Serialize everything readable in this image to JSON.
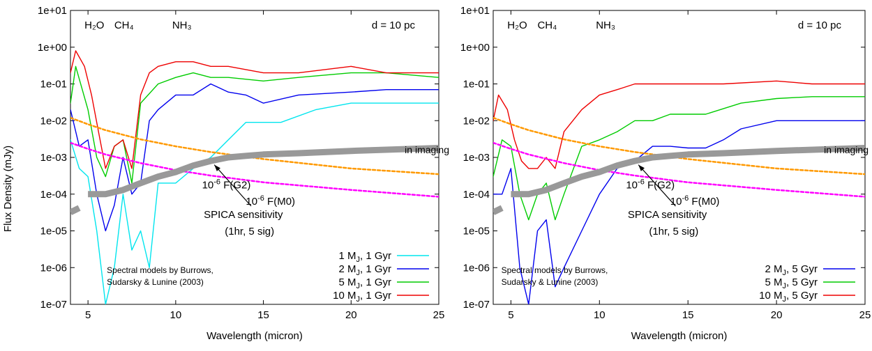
{
  "figure": {
    "ylabel": "Flux Density (mJy)"
  },
  "chart_data": [
    {
      "type": "line",
      "panel": "left",
      "title": "",
      "xlabel": "Wavelength (micron)",
      "ylabel": "Flux Density (mJy)",
      "x_scale": "linear",
      "y_scale": "log",
      "xlim": [
        4,
        25
      ],
      "ylim": [
        1e-07,
        10
      ],
      "grid": false,
      "legend_position": "bottom-right",
      "x_ticks": [
        5,
        10,
        15,
        20,
        25
      ],
      "y_ticks": [
        {
          "value": 10,
          "label": "1e+01"
        },
        {
          "value": 1,
          "label": "1e+00"
        },
        {
          "value": 0.1,
          "label": "1e-01"
        },
        {
          "value": 0.01,
          "label": "1e-02"
        },
        {
          "value": 0.001,
          "label": "1e-03"
        },
        {
          "value": 0.0001,
          "label": "1e-04"
        },
        {
          "value": 1e-05,
          "label": "1e-05"
        },
        {
          "value": 1e-06,
          "label": "1e-06"
        },
        {
          "value": 1e-07,
          "label": "1e-07"
        }
      ],
      "band_labels": [
        "H₂O",
        "CH₄",
        "NH₃"
      ],
      "distance_label": "d = 10 pc",
      "series": [
        {
          "name": "1 MJ, 1 Gyr",
          "color": "#00e5ee",
          "x": [
            4.0,
            4.5,
            5.0,
            5.5,
            6.0,
            6.5,
            7.0,
            7.5,
            8.0,
            8.5,
            9.0,
            10.0,
            11.0,
            12.0,
            13.0,
            14.0,
            16.0,
            18.0,
            20.0,
            22.0,
            25.0
          ],
          "y": [
            0.003,
            0.0005,
            0.0003,
            1e-05,
            1e-07,
            1e-06,
            0.0001,
            3e-06,
            1e-05,
            1e-06,
            0.0002,
            0.0002,
            0.0005,
            0.001,
            0.003,
            0.009,
            0.009,
            0.02,
            0.03,
            0.03,
            0.03
          ]
        },
        {
          "name": "2 MJ, 1 Gyr",
          "color": "#0000ee",
          "x": [
            4.0,
            4.5,
            5.0,
            5.5,
            6.0,
            6.5,
            7.0,
            7.5,
            8.0,
            8.5,
            9.0,
            10.0,
            11.0,
            12.0,
            13.0,
            14.0,
            15.0,
            17.0,
            20.0,
            22.0,
            25.0
          ],
          "y": [
            0.02,
            0.002,
            0.003,
            0.0001,
            1e-05,
            5e-05,
            0.001,
            0.0001,
            0.0002,
            0.01,
            0.02,
            0.05,
            0.05,
            0.1,
            0.06,
            0.05,
            0.03,
            0.05,
            0.06,
            0.07,
            0.07
          ]
        },
        {
          "name": "5 MJ, 1 Gyr",
          "color": "#00cc00",
          "x": [
            4.0,
            4.3,
            5.0,
            5.5,
            6.0,
            6.5,
            7.0,
            7.5,
            8.0,
            9.0,
            10.0,
            11.0,
            12.0,
            13.0,
            15.0,
            17.0,
            20.0,
            22.0,
            25.0
          ],
          "y": [
            0.03,
            0.3,
            0.02,
            0.001,
            0.0003,
            0.002,
            0.003,
            0.0002,
            0.03,
            0.1,
            0.15,
            0.2,
            0.15,
            0.15,
            0.12,
            0.15,
            0.2,
            0.2,
            0.15
          ]
        },
        {
          "name": "10 MJ, 1 Gyr",
          "color": "#ee0000",
          "x": [
            4.0,
            4.3,
            4.8,
            5.2,
            5.6,
            6.0,
            6.5,
            7.0,
            7.5,
            8.0,
            8.5,
            9.0,
            10.0,
            11.0,
            12.0,
            13.0,
            15.0,
            17.0,
            20.0,
            22.0,
            25.0
          ],
          "y": [
            0.2,
            0.8,
            0.3,
            0.05,
            0.005,
            0.0005,
            0.002,
            0.003,
            0.0005,
            0.05,
            0.2,
            0.3,
            0.4,
            0.4,
            0.3,
            0.3,
            0.2,
            0.2,
            0.3,
            0.2,
            0.2
          ]
        },
        {
          "name": "10-6 F(G2)",
          "color": "#ff9900",
          "dashed": true,
          "x": [
            4,
            5,
            6,
            8,
            10,
            12,
            15,
            20,
            25
          ],
          "y": [
            0.012,
            0.008,
            0.0055,
            0.0031,
            0.002,
            0.0014,
            0.0009,
            0.0005,
            0.00035
          ]
        },
        {
          "name": "10-6 F(M0)",
          "color": "#ff00ff",
          "dashed": true,
          "x": [
            4,
            5,
            6,
            8,
            10,
            12,
            15,
            20,
            25
          ],
          "y": [
            0.0025,
            0.0017,
            0.0012,
            0.0007,
            0.00045,
            0.00032,
            0.00021,
            0.00013,
            8.5e-05
          ]
        },
        {
          "name": "SPICA sensitivity",
          "color": "#999999",
          "x": [
            5.0,
            6.0,
            7.0,
            8.0,
            9.0,
            10.0,
            11.0,
            12.0,
            13.0,
            14.0,
            15.0,
            17.0,
            20.0,
            25.0
          ],
          "y": [
            0.0001,
            0.0001,
            0.00013,
            0.0002,
            0.0003,
            0.0004,
            0.0006,
            0.0008,
            0.001,
            0.0011,
            0.0012,
            0.0013,
            0.0015,
            0.0018
          ]
        },
        {
          "name": "SPICA sensitivity (short)",
          "color": "#999999",
          "x": [
            4.0,
            4.5
          ],
          "y": [
            3.2e-05,
            4.2e-05
          ]
        }
      ],
      "legend": [
        {
          "label": "1 MJ, 1 Gyr",
          "color": "#00e5ee"
        },
        {
          "label": "2 MJ, 1 Gyr",
          "color": "#0000ee"
        },
        {
          "label": "5 MJ, 1 Gyr",
          "color": "#00cc00"
        },
        {
          "label": "10 MJ, 1 Gyr",
          "color": "#ee0000"
        }
      ],
      "annotations": {
        "g2": "10-6 F(G2)",
        "m0": "10-6 F(M0)",
        "spica_line1": "SPICA sensitivity",
        "spica_line2": "(1hr, 5 sig)",
        "imaging": "in imaging",
        "credit_line1": "Spectral models by Burrows,",
        "credit_line2": "Sudarsky & Lunine (2003)"
      }
    },
    {
      "type": "line",
      "panel": "right",
      "title": "",
      "xlabel": "Wavelength (micron)",
      "ylabel": "",
      "x_scale": "linear",
      "y_scale": "log",
      "xlim": [
        4,
        25
      ],
      "ylim": [
        1e-07,
        10
      ],
      "grid": false,
      "legend_position": "bottom-right",
      "x_ticks": [
        5,
        10,
        15,
        20,
        25
      ],
      "y_ticks": [
        {
          "value": 10,
          "label": "1e+01"
        },
        {
          "value": 1,
          "label": "1e+00"
        },
        {
          "value": 0.1,
          "label": "1e-01"
        },
        {
          "value": 0.01,
          "label": "1e-02"
        },
        {
          "value": 0.001,
          "label": "1e-03"
        },
        {
          "value": 0.0001,
          "label": "1e-04"
        },
        {
          "value": 1e-05,
          "label": "1e-05"
        },
        {
          "value": 1e-06,
          "label": "1e-06"
        },
        {
          "value": 1e-07,
          "label": "1e-07"
        }
      ],
      "band_labels": [
        "H₂O",
        "CH₄",
        "NH₃"
      ],
      "distance_label": "d = 10 pc",
      "series": [
        {
          "name": "2 MJ, 5 Gyr",
          "color": "#0000ee",
          "x": [
            4.0,
            4.5,
            5.0,
            5.5,
            6.0,
            6.5,
            7.0,
            7.5,
            8.0,
            9.0,
            10.0,
            11.0,
            12.0,
            13.0,
            14.0,
            15.0,
            16.0,
            17.0,
            18.0,
            20.0,
            25.0
          ],
          "y": [
            0.0001,
            0.0001,
            0.0005,
            1e-06,
            1e-07,
            1e-05,
            2e-05,
            3e-07,
            1e-06,
            1e-05,
            0.0001,
            0.0005,
            0.0008,
            0.002,
            0.002,
            0.0018,
            0.0018,
            0.003,
            0.006,
            0.01,
            0.01
          ]
        },
        {
          "name": "5 MJ, 5 Gyr",
          "color": "#00cc00",
          "x": [
            4.0,
            4.5,
            5.0,
            5.5,
            6.0,
            6.5,
            7.0,
            7.5,
            8.0,
            9.0,
            10.0,
            11.0,
            12.0,
            13.0,
            14.0,
            15.0,
            16.0,
            18.0,
            20.0,
            22.0,
            25.0
          ],
          "y": [
            0.0003,
            0.003,
            0.002,
            0.0001,
            2e-05,
            0.0001,
            0.0002,
            2e-05,
            0.0001,
            0.002,
            0.003,
            0.005,
            0.01,
            0.01,
            0.015,
            0.015,
            0.015,
            0.03,
            0.04,
            0.045,
            0.045
          ]
        },
        {
          "name": "10 MJ, 5 Gyr",
          "color": "#ee0000",
          "x": [
            4.0,
            4.3,
            4.8,
            5.2,
            5.6,
            6.0,
            6.5,
            7.0,
            7.5,
            8.0,
            9.0,
            10.0,
            11.0,
            12.0,
            13.0,
            15.0,
            17.0,
            20.0,
            22.0,
            25.0
          ],
          "y": [
            0.01,
            0.05,
            0.02,
            0.003,
            0.0008,
            0.0005,
            0.0005,
            0.001,
            0.0005,
            0.005,
            0.02,
            0.05,
            0.07,
            0.1,
            0.1,
            0.1,
            0.1,
            0.12,
            0.1,
            0.1
          ]
        },
        {
          "name": "10-6 F(G2)",
          "color": "#ff9900",
          "dashed": true,
          "x": [
            4,
            5,
            6,
            8,
            10,
            12,
            15,
            20,
            25
          ],
          "y": [
            0.012,
            0.008,
            0.0055,
            0.0031,
            0.002,
            0.0014,
            0.0009,
            0.0005,
            0.00035
          ]
        },
        {
          "name": "10-6 F(M0)",
          "color": "#ff00ff",
          "dashed": true,
          "x": [
            4,
            5,
            6,
            8,
            10,
            12,
            15,
            20,
            25
          ],
          "y": [
            0.0025,
            0.0017,
            0.0012,
            0.0007,
            0.00045,
            0.00032,
            0.00021,
            0.00013,
            8.5e-05
          ]
        },
        {
          "name": "SPICA sensitivity",
          "color": "#999999",
          "x": [
            5.0,
            6.0,
            7.0,
            8.0,
            9.0,
            10.0,
            11.0,
            12.0,
            13.0,
            14.0,
            15.0,
            17.0,
            20.0,
            25.0
          ],
          "y": [
            0.0001,
            0.0001,
            0.00013,
            0.0002,
            0.0003,
            0.0004,
            0.0006,
            0.0008,
            0.001,
            0.0011,
            0.0012,
            0.0013,
            0.0015,
            0.0018
          ]
        },
        {
          "name": "SPICA sensitivity (short)",
          "color": "#999999",
          "x": [
            4.0,
            4.5
          ],
          "y": [
            3.2e-05,
            4.2e-05
          ]
        }
      ],
      "legend": [
        {
          "label": "2 MJ, 5 Gyr",
          "color": "#0000ee"
        },
        {
          "label": "5 MJ, 5 Gyr",
          "color": "#00cc00"
        },
        {
          "label": "10 MJ, 5 Gyr",
          "color": "#ee0000"
        }
      ],
      "annotations": {
        "g2": "10-6 F(G2)",
        "m0": "10-6 F(M0)",
        "spica_line1": "SPICA sensitivity",
        "spica_line2": "(1hr, 5 sig)",
        "imaging": "in imaging",
        "credit_line1": "Spectral models by Burrows,",
        "credit_line2": "Sudarsky & Lunine (2003)"
      }
    }
  ]
}
